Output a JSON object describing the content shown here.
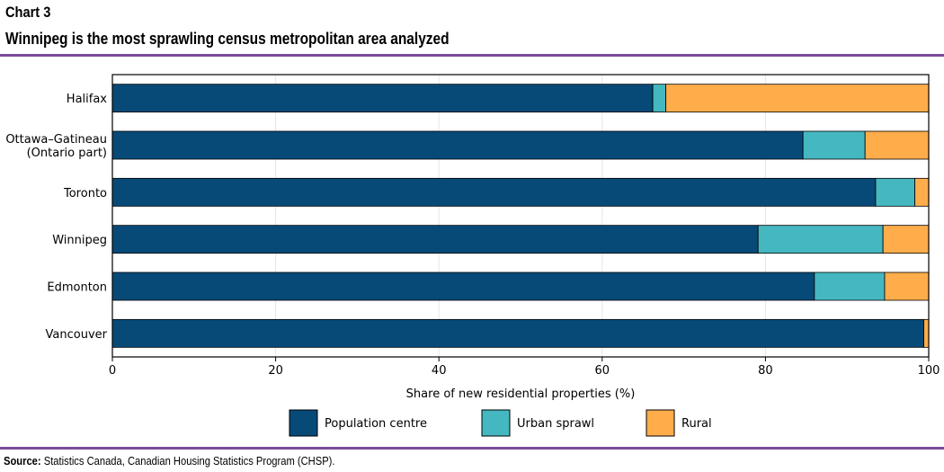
{
  "header": {
    "chart_label": "Chart 3",
    "title": "Winnipeg is the most sprawling census metropolitan area analyzed"
  },
  "footer": {
    "source_label": "Source:",
    "source_text": "Statistics Canada, Canadian Housing Statistics Program (CHSP)."
  },
  "chart_data": {
    "type": "bar",
    "orientation": "horizontal",
    "stacked": true,
    "categories": [
      [
        "Halifax"
      ],
      [
        "Ottawa–Gatineau",
        "(Ontario part)"
      ],
      [
        "Toronto"
      ],
      [
        "Winnipeg"
      ],
      [
        "Edmonton"
      ],
      [
        "Vancouver"
      ]
    ],
    "series": [
      {
        "name": "Population centre",
        "color": "#074a78",
        "values": [
          66.2,
          84.6,
          93.5,
          79.1,
          86.0,
          99.4
        ]
      },
      {
        "name": "Urban sprawl",
        "color": "#45b7c0",
        "values": [
          1.6,
          7.6,
          4.8,
          15.3,
          8.6,
          0.0
        ]
      },
      {
        "name": "Rural",
        "color": "#ffac4a",
        "values": [
          32.2,
          7.8,
          1.7,
          5.6,
          5.4,
          0.6
        ]
      }
    ],
    "xlabel": "Share of new residential properties (%)",
    "ylabel": "",
    "xlim": [
      0,
      100
    ],
    "xticks": [
      0,
      20,
      40,
      60,
      80,
      100
    ],
    "grid": true,
    "legend_position": "bottom"
  }
}
